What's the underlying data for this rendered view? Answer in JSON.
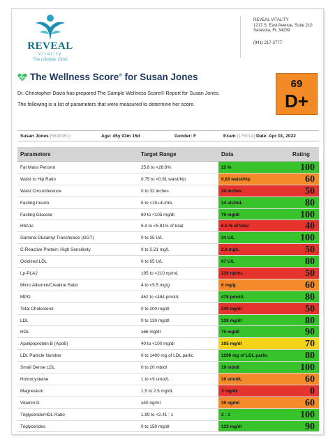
{
  "clinic": {
    "logo_name": "REVEAL",
    "logo_sub": "vitality",
    "logo_tagline": "The Lifestyle Clinic",
    "name": "REVEAL VITALITY",
    "address1": "1217 S. East Avenue, Suite 210",
    "address2": "Sarasota, FL 34239",
    "phone": "(941) 217-2777"
  },
  "title": {
    "text": "The Wellness Score",
    "reg": "®",
    "suffix": " for Susan Jones",
    "intro_line1": "Dr. Christopher Davis has prepared The Sample Wellness Score® Report for Susan Jones.",
    "intro_line2": "The following is a list of parameters that were measured to determine her score."
  },
  "score": {
    "value": "69",
    "grade": "D+"
  },
  "patient": {
    "name": "Susan Jones",
    "id": "[5638351]",
    "age": "Age: 45y 03m 15d",
    "gender": "Gender: F",
    "exam_label": "Exam",
    "exam_id": "[175014]",
    "date": "Date: Apr 01, 2022"
  },
  "columns": {
    "param": "Parameters",
    "target": "Target Range",
    "data": "Data",
    "rating": "Rating"
  },
  "colors": {
    "green": "#38c22c",
    "orange": "#f48a2a",
    "red": "#e4342d",
    "yellow": "#f3d41b"
  },
  "rows": [
    {
      "param": "Fat Mass Percent",
      "target": "25.8 to <28.8%",
      "data": "23 %",
      "rating": "100",
      "color": "#38c22c"
    },
    {
      "param": "Waist to Hip Ratio",
      "target": "0.75 to <0.81 waist/hip",
      "data": "0.83 waist/hip",
      "rating": "60",
      "color": "#f48a2a"
    },
    {
      "param": "Waist Circumference",
      "target": "0 to 32 inches",
      "data": "34 inches",
      "rating": "50",
      "color": "#e4342d"
    },
    {
      "param": "Fasting Insulin",
      "target": "5 to <15 uIU/mL",
      "data": "14 uIU/mL",
      "rating": "80",
      "color": "#38c22c"
    },
    {
      "param": "Fasting Glucose",
      "target": "60 to <105 mg/dl",
      "data": "76 mg/dl",
      "rating": "100",
      "color": "#38c22c"
    },
    {
      "param": "HbA1c",
      "target": "5.4 to <5.81% of total",
      "data": "6.5 % of total",
      "rating": "40",
      "color": "#e4342d"
    },
    {
      "param": "Gamma-Glutamyl Transferase (GGT)",
      "target": "0 to 35 U/L",
      "data": "34 U/L",
      "rating": "100",
      "color": "#38c22c"
    },
    {
      "param": "C-Reactive Protein: High Sensitivity",
      "target": "0 to 2.21 mg/L",
      "data": "2.9 mg/L",
      "rating": "50",
      "color": "#e4342d"
    },
    {
      "param": "Oxidized LDL",
      "target": "0 to 65 U/L",
      "data": "67 U/L",
      "rating": "80",
      "color": "#38c22c"
    },
    {
      "param": "Lp-PLA2",
      "target": "195 to <210 np/mL",
      "data": "220 np/mL",
      "rating": "50",
      "color": "#e4342d"
    },
    {
      "param": "Micro Albumin/Creatine Ratio",
      "target": "4 to <5.5 mg/g",
      "data": "6 mg/g",
      "rating": "60",
      "color": "#f48a2a"
    },
    {
      "param": "MPO",
      "target": "462 to <484 pmol/L",
      "data": "478 pmol/L",
      "rating": "80",
      "color": "#38c22c"
    },
    {
      "param": "Total Cholesterol",
      "target": "0 to 200 mg/dl",
      "data": "240 mg/dl",
      "rating": "50",
      "color": "#e4342d"
    },
    {
      "param": "LDL",
      "target": "0 to 130 mg/dl",
      "data": "120 mg/dl",
      "rating": "80",
      "color": "#38c22c"
    },
    {
      "param": "HDL",
      "target": "≥66 mg/dl",
      "data": "76 mg/dl",
      "rating": "90",
      "color": "#38c22c"
    },
    {
      "param": "Apolipoprotein B (ApoB)",
      "target": "40 to <100 mg/dl",
      "data": "105 mg/dl",
      "rating": "70",
      "color": "#f3d41b"
    },
    {
      "param": "LDL Particle Number",
      "target": "0 to 1400 mg of LDL partic",
      "data": "1290 mg of LDL partic",
      "rating": "80",
      "color": "#38c22c"
    },
    {
      "param": "Small Dense LDL",
      "target": "0 to 20 mb/dl",
      "data": "19 mb/dl",
      "rating": "100",
      "color": "#38c22c"
    },
    {
      "param": "Homocysteine",
      "target": "1 to <9 umol/L",
      "data": "10 umol/L",
      "rating": "60",
      "color": "#f48a2a"
    },
    {
      "param": "Magnesium",
      "target": "1.5 to 2.5 mg/dL",
      "data": "3 mg/dL",
      "rating": "0",
      "color": "#e4342d"
    },
    {
      "param": "Vitamin D",
      "target": "≥40 ng/ml",
      "data": "30 ng/ml",
      "rating": "60",
      "color": "#f48a2a"
    },
    {
      "param": "Triglyceride/HDL Ratio",
      "target": "1.99 to <2.41 : 1",
      "data": "2 : 1",
      "rating": "100",
      "color": "#38c22c"
    },
    {
      "param": "Triglycerides",
      "target": "0 to 150 mg/dl",
      "data": "123 mg/dl",
      "rating": "90",
      "color": "#38c22c"
    }
  ]
}
